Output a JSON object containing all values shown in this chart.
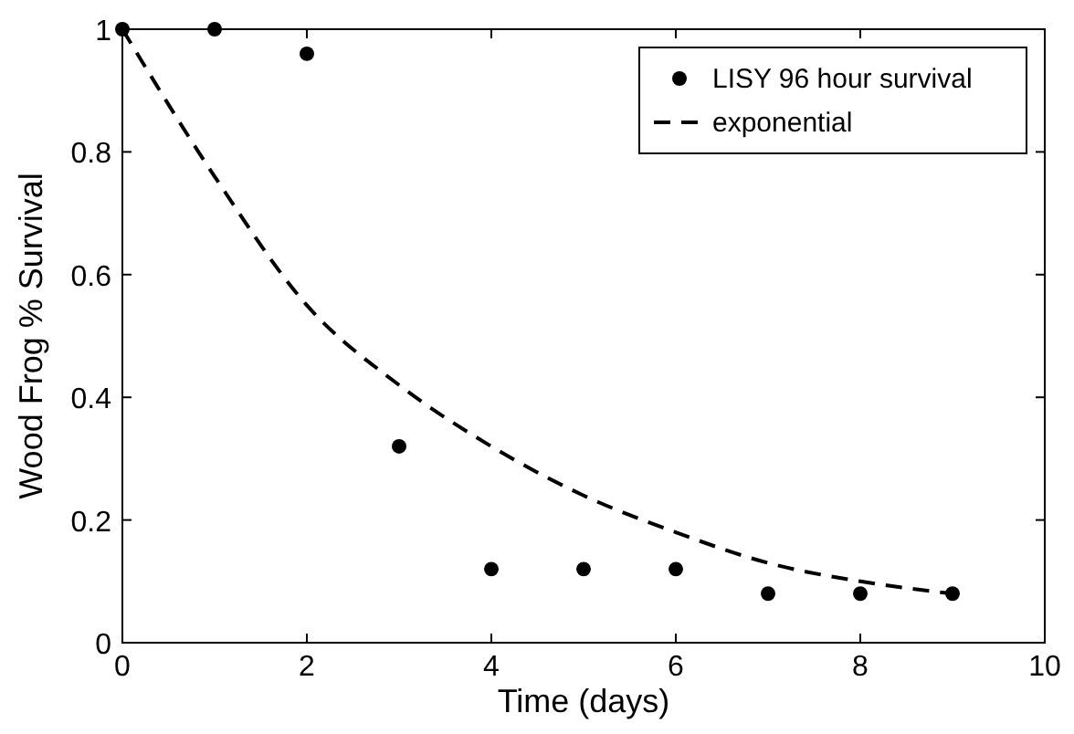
{
  "chart_data": {
    "type": "scatter",
    "xlabel": "Time (days)",
    "ylabel": "Wood Frog % Survival",
    "xlim": [
      0,
      10
    ],
    "ylim": [
      0,
      1
    ],
    "xticks": [
      0,
      2,
      4,
      6,
      8,
      10
    ],
    "yticks": [
      0,
      0.2,
      0.4,
      0.6,
      0.8,
      1
    ],
    "legend": "top right",
    "grid": false,
    "series": [
      {
        "name": "LISY 96 hour survival",
        "marker": "circle",
        "color": "#000000",
        "x": [
          0,
          1,
          2,
          3,
          4,
          5,
          6,
          7,
          8,
          9
        ],
        "values": [
          1,
          1,
          0.96,
          0.32,
          0.12,
          0.12,
          0.12,
          0.08,
          0.08,
          0.08
        ]
      },
      {
        "name": "exponential",
        "type": "line",
        "marker": "none",
        "line_style": "dashed",
        "color": "#000000",
        "x": [
          0,
          1,
          2,
          3,
          4,
          5,
          6,
          7,
          8,
          9
        ],
        "values": [
          1,
          0.76,
          0.55,
          0.42,
          0.32,
          0.24,
          0.18,
          0.13,
          0.1,
          0.08
        ]
      }
    ]
  }
}
